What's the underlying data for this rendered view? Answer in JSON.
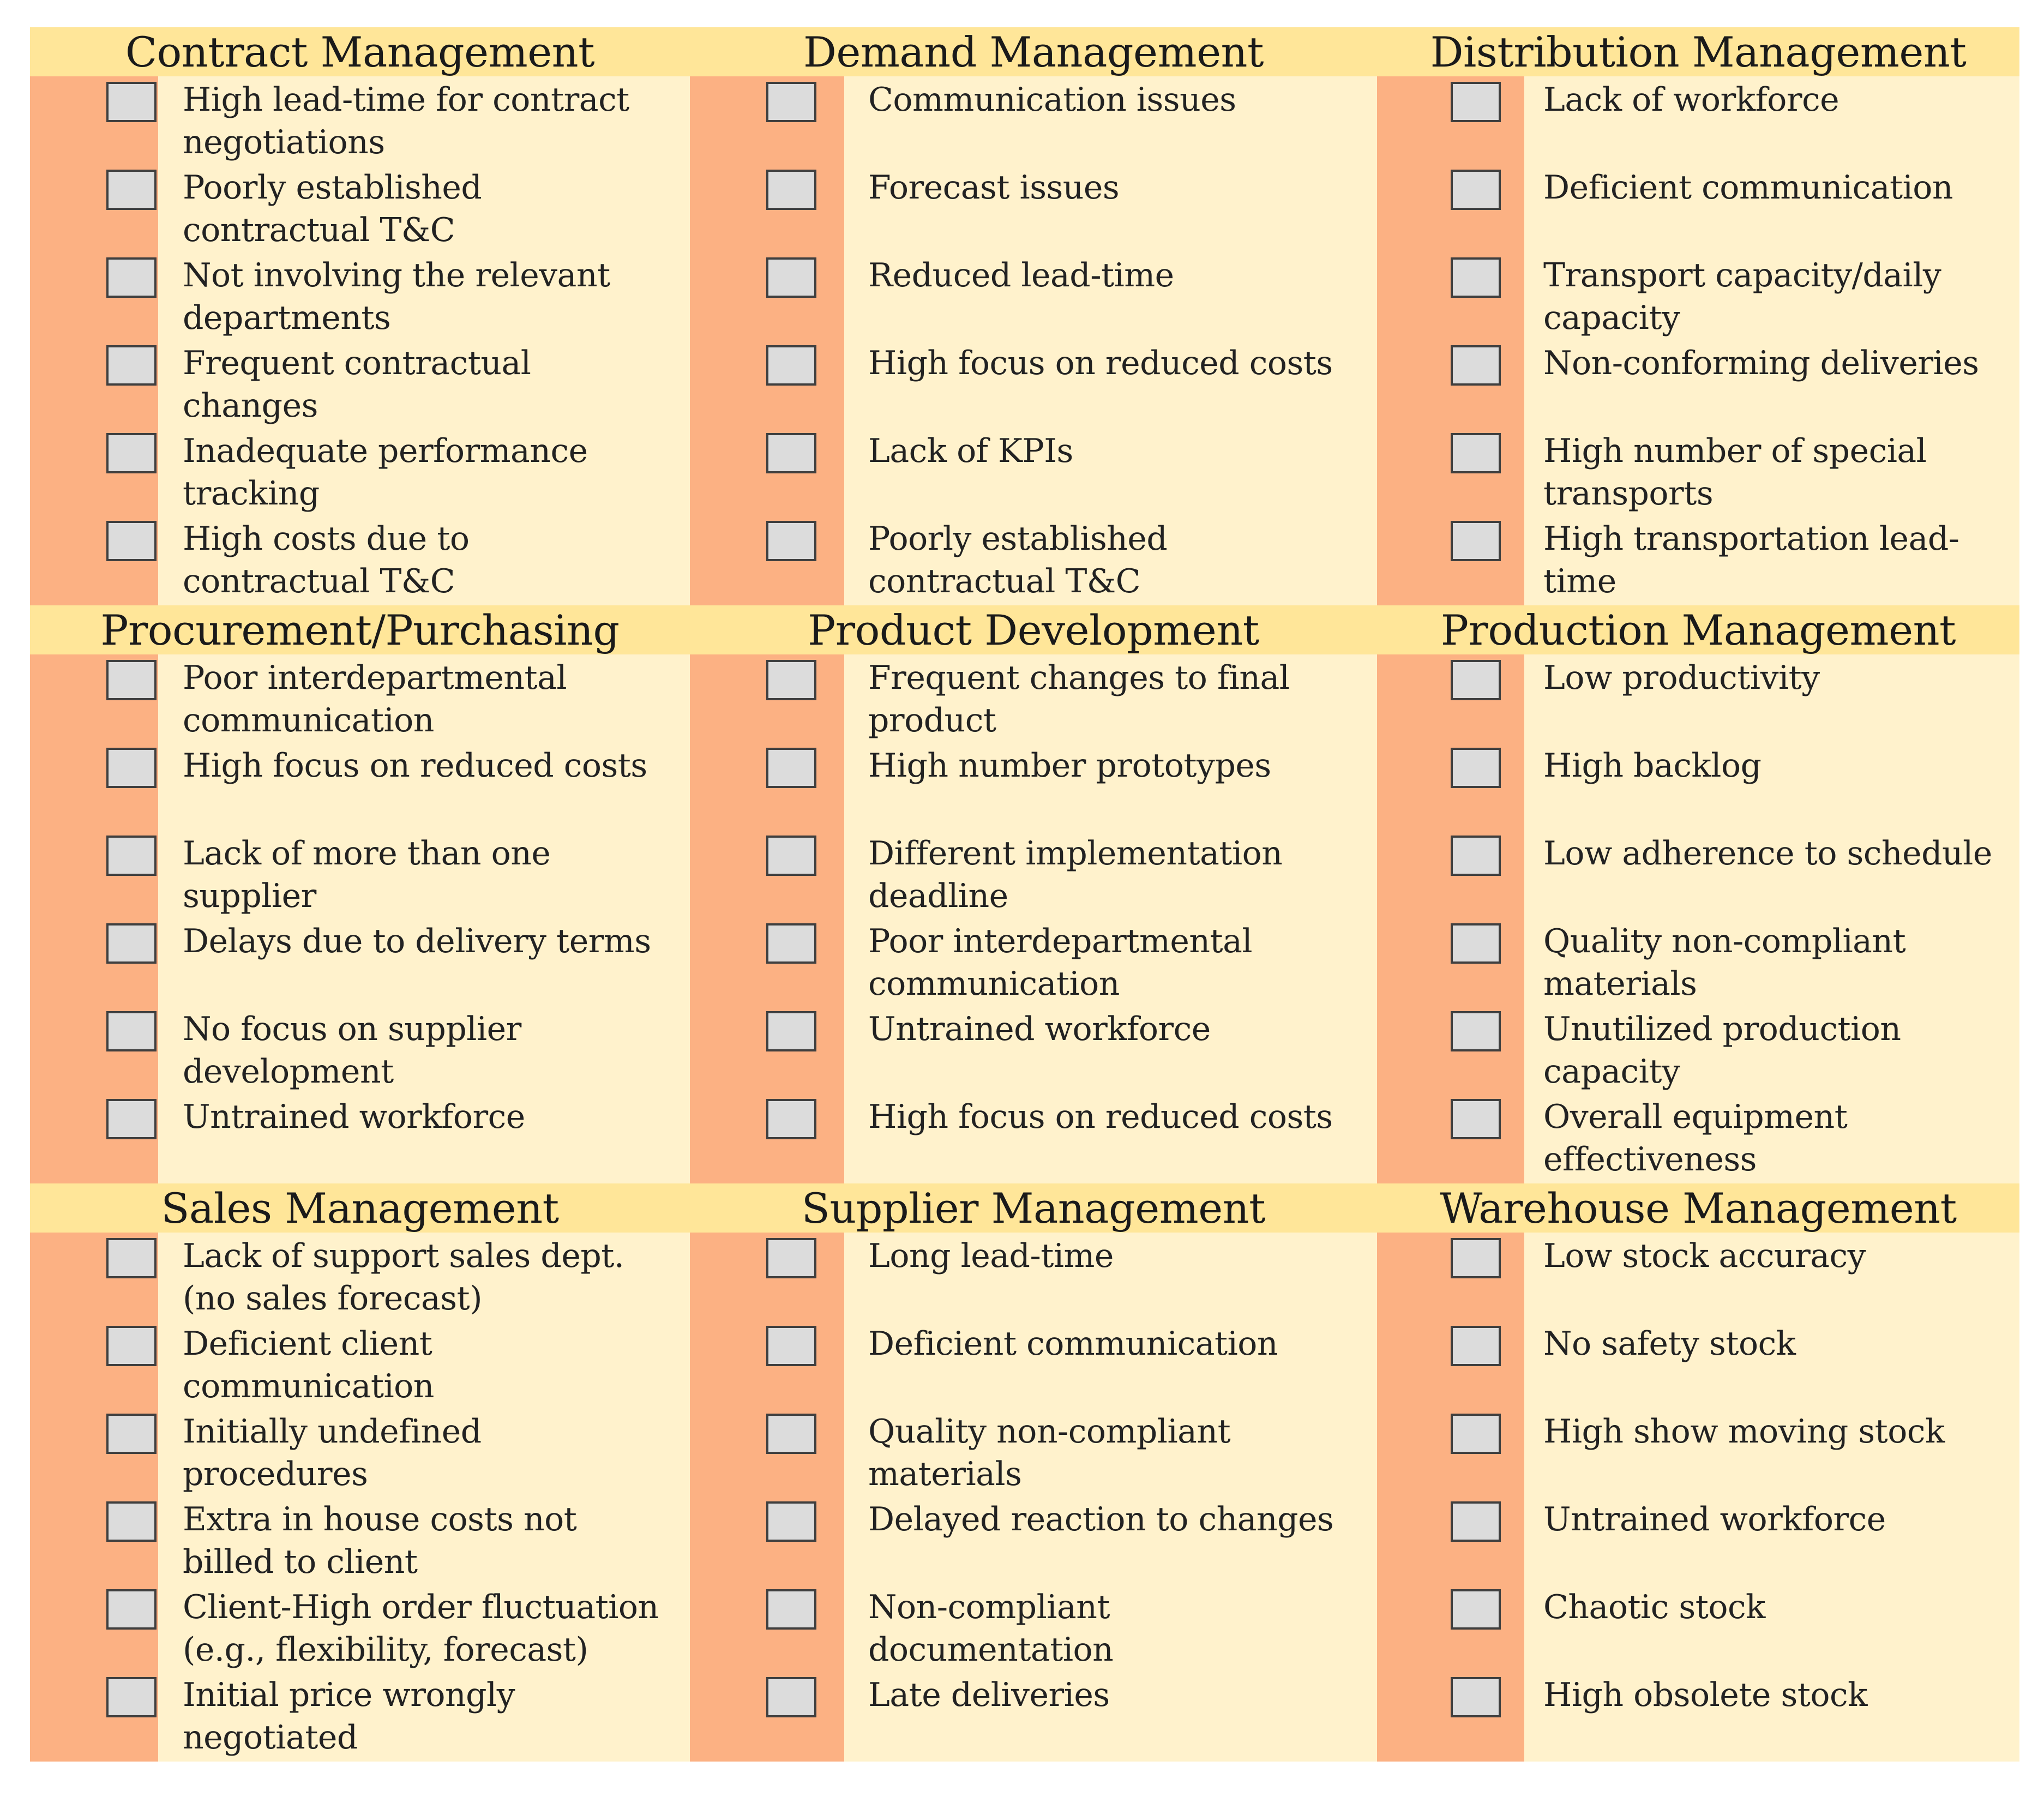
{
  "panels": [
    {
      "title": "Contract Management",
      "items": [
        "High lead-time for contract negotiations",
        "Poorly established contractual T&C",
        "Not involving the relevant departments",
        "Frequent contractual changes",
        "Inadequate performance tracking",
        "High costs due to contractual T&C"
      ]
    },
    {
      "title": "Demand Management",
      "items": [
        "Communication issues",
        "Forecast issues",
        "Reduced lead-time",
        "High focus on reduced costs",
        "Lack of KPIs",
        "Poorly established contractual T&C"
      ]
    },
    {
      "title": "Distribution Management",
      "items": [
        "Lack of workforce",
        "Deficient communication",
        "Transport capacity/daily capacity",
        "Non-conforming deliveries",
        "High number of special transports",
        "High transportation lead-time"
      ]
    },
    {
      "title": "Procurement/Purchasing",
      "items": [
        "Poor interdepartmental communication",
        "High focus on reduced costs",
        "Lack of more than one supplier",
        "Delays due to delivery terms",
        "No focus on supplier development",
        "Untrained workforce"
      ]
    },
    {
      "title": "Product Development",
      "items": [
        "Frequent changes to final product",
        "High number prototypes",
        "Different implementation deadline",
        "Poor interdepartmental communication",
        "Untrained workforce",
        "High focus on reduced costs"
      ]
    },
    {
      "title": "Production Management",
      "items": [
        "Low productivity",
        "High backlog",
        "Low adherence to schedule",
        "Quality non-compliant materials",
        "Unutilized production capacity",
        "Overall equipment effectiveness"
      ]
    },
    {
      "title": "Sales Management",
      "items": [
        "Lack of support sales dept. (no sales forecast)",
        "Deficient client communication",
        "Initially undefined procedures",
        "Extra in house costs not billed to client",
        "Client-High order fluctuation (e.g., flexibility, forecast)",
        "Initial price wrongly negotiated"
      ]
    },
    {
      "title": "Supplier Management",
      "items": [
        "Long lead-time",
        "Deficient communication",
        "Quality non-compliant materials",
        "Delayed reaction to changes",
        "Non-compliant documentation",
        "Late deliveries"
      ]
    },
    {
      "title": "Warehouse Management",
      "items": [
        "Low stock accuracy",
        "No safety stock",
        "High show moving stock",
        "Untrained workforce",
        "Chaotic stock",
        "High obsolete stock"
      ]
    }
  ],
  "colors": {
    "header": "#ffe699",
    "body": "#fff2cc",
    "stripe": "#fcb183",
    "checkbox": "#dcdcdc"
  }
}
